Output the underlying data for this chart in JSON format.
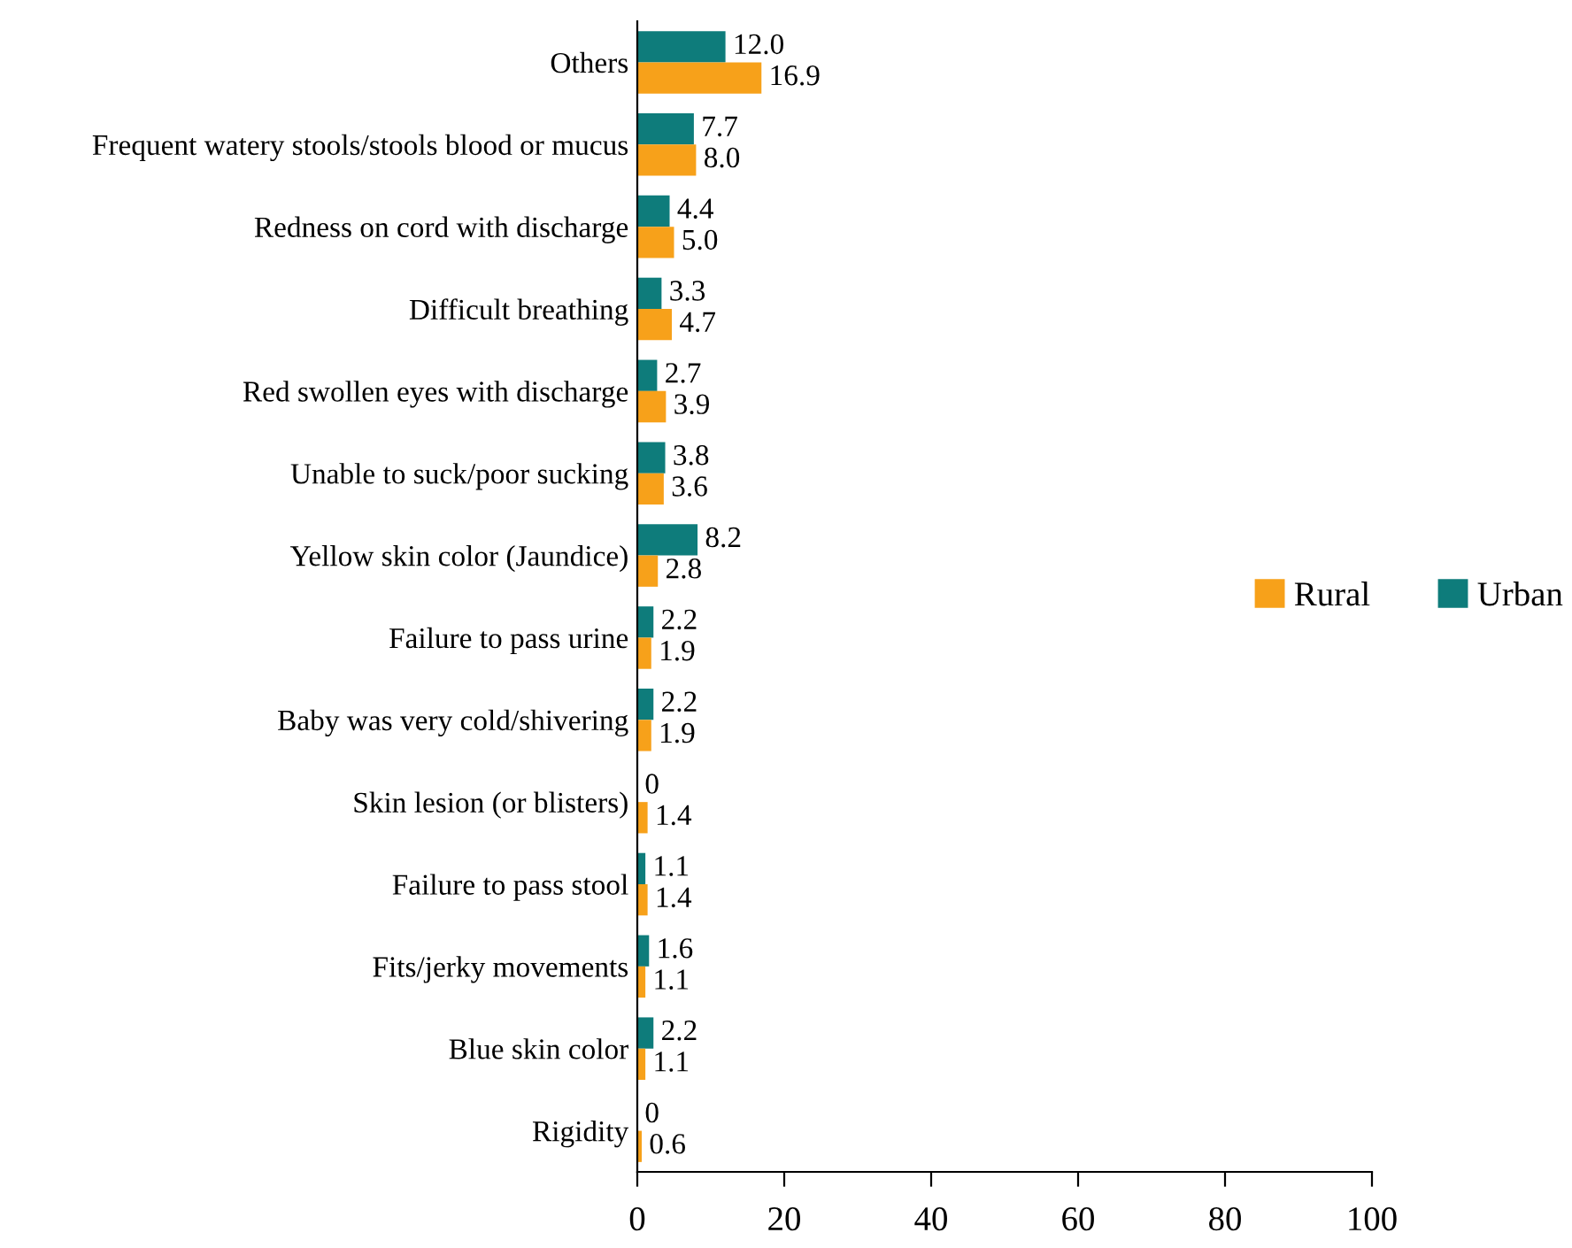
{
  "chart_data": {
    "type": "bar",
    "orientation": "horizontal",
    "categories": [
      "Others",
      "Frequent watery stools/stools blood or mucus",
      "Redness on cord with discharge",
      "Difficult breathing",
      "Red swollen eyes with discharge",
      "Unable to suck/poor sucking",
      "Yellow skin color (Jaundice)",
      "Failure to pass urine",
      "Baby was very cold/shivering",
      "Skin lesion (or blisters)",
      "Failure to pass stool",
      "Fits/jerky movements",
      "Blue skin color",
      "Rigidity"
    ],
    "series": [
      {
        "name": "Urban",
        "color": "#0e7c7b",
        "values": [
          12.0,
          7.7,
          4.4,
          3.3,
          2.7,
          3.8,
          8.2,
          2.2,
          2.2,
          0,
          1.1,
          1.6,
          2.2,
          0
        ],
        "value_labels": [
          "12.0",
          "7.7",
          "4.4",
          "3.3",
          "2.7",
          "3.8",
          "8.2",
          "2.2",
          "2.2",
          "0",
          "1.1",
          "1.6",
          "2.2",
          "0"
        ]
      },
      {
        "name": "Rural",
        "color": "#f7a11a",
        "values": [
          16.9,
          8.0,
          5.0,
          4.7,
          3.9,
          3.6,
          2.8,
          1.9,
          1.9,
          1.4,
          1.4,
          1.1,
          1.1,
          0.6
        ],
        "value_labels": [
          "16.9",
          "8.0",
          "5.0",
          "4.7",
          "3.9",
          "3.6",
          "2.8",
          "1.9",
          "1.9",
          "1.4",
          "1.4",
          "1.1",
          "1.1",
          "0.6"
        ]
      }
    ],
    "xlim": [
      0,
      100
    ],
    "xticks": [
      0,
      20,
      40,
      60,
      80,
      100
    ],
    "grid": false,
    "legend": "right"
  }
}
